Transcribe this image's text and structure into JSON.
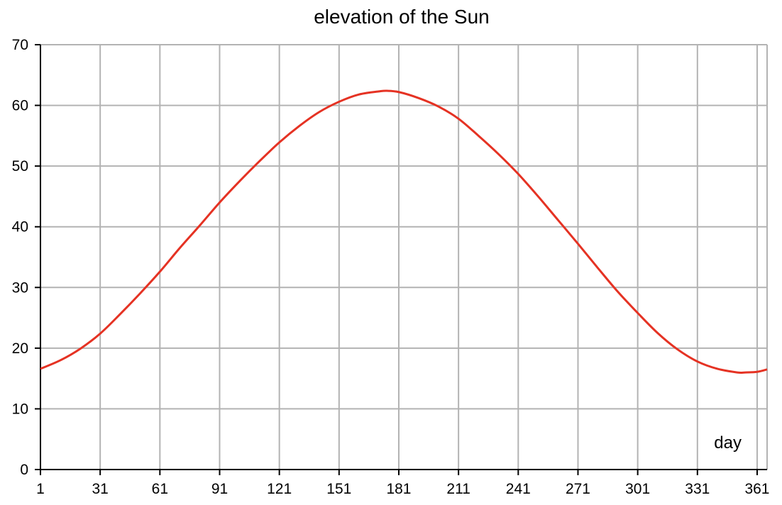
{
  "chart_data": {
    "type": "line",
    "title": "elevation of the Sun",
    "xlabel": "day",
    "ylabel": "",
    "xlim": [
      1,
      366
    ],
    "ylim": [
      0,
      70
    ],
    "xticks": [
      1,
      31,
      61,
      91,
      121,
      151,
      181,
      211,
      241,
      271,
      301,
      331,
      361
    ],
    "yticks": [
      0,
      10,
      20,
      30,
      40,
      50,
      60,
      70
    ],
    "grid": true,
    "series": [
      {
        "color": "#e53223",
        "x": [
          1,
          11,
          21,
          31,
          41,
          51,
          61,
          71,
          81,
          91,
          101,
          111,
          121,
          131,
          141,
          151,
          161,
          171,
          175,
          181,
          191,
          201,
          211,
          221,
          231,
          241,
          251,
          261,
          271,
          281,
          291,
          301,
          311,
          321,
          331,
          341,
          351,
          355,
          361,
          366
        ],
        "y": [
          16.6,
          18.0,
          19.9,
          22.4,
          25.6,
          29.0,
          32.6,
          36.5,
          40.2,
          44.0,
          47.5,
          50.8,
          53.9,
          56.6,
          58.9,
          60.6,
          61.8,
          62.3,
          62.4,
          62.2,
          61.2,
          59.8,
          57.8,
          55.0,
          52.0,
          48.7,
          45.0,
          41.1,
          37.2,
          33.2,
          29.3,
          25.8,
          22.5,
          19.8,
          17.8,
          16.6,
          16.0,
          16.0,
          16.1,
          16.5
        ]
      }
    ]
  }
}
